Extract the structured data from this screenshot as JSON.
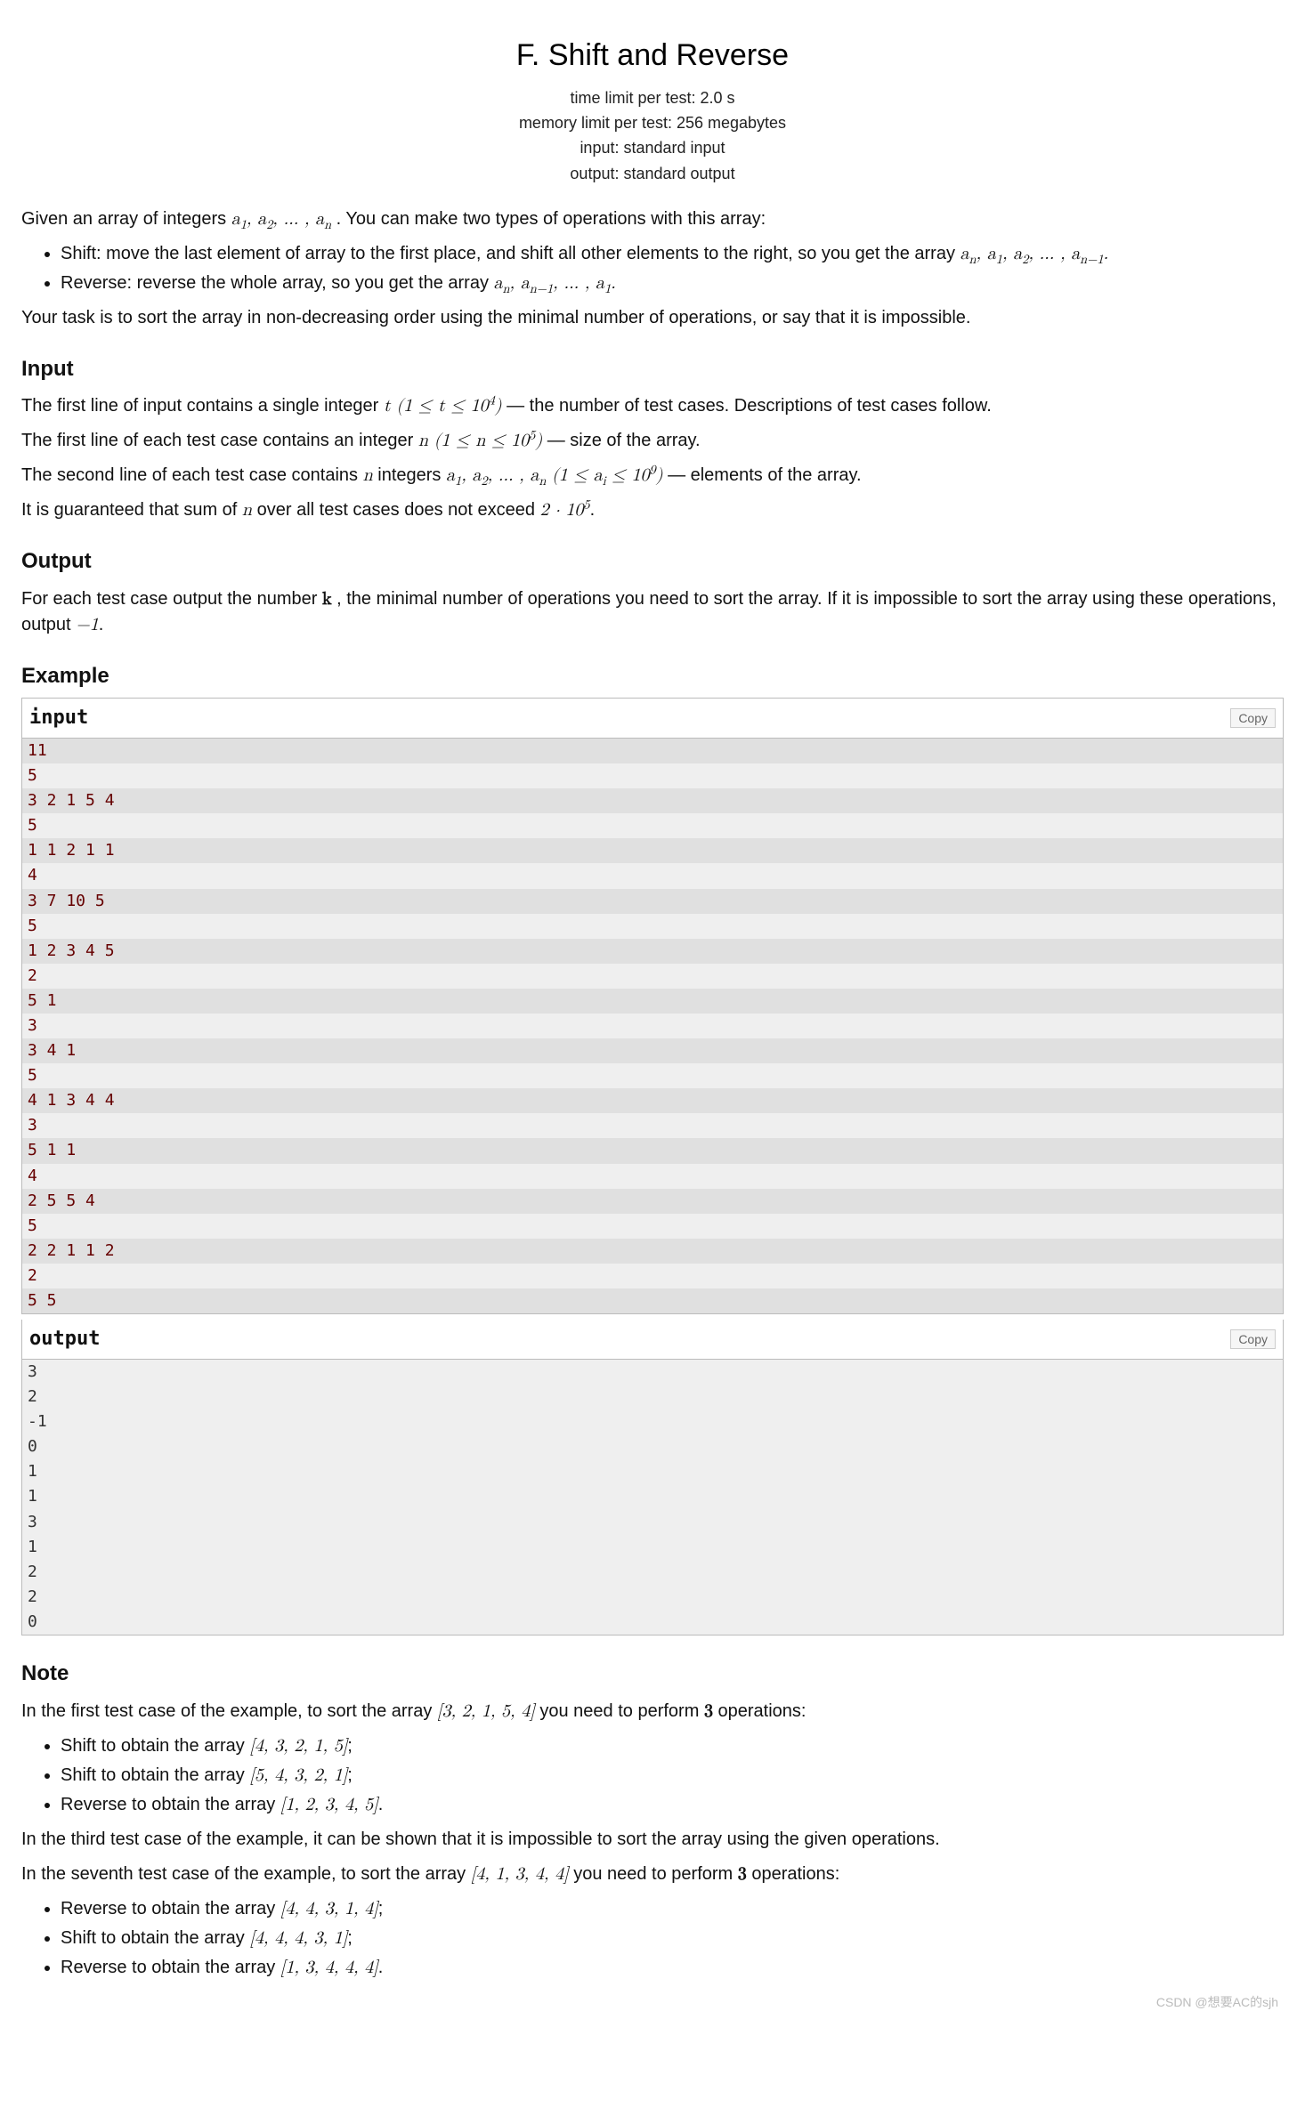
{
  "title": "F. Shift and Reverse",
  "meta": {
    "time": "time limit per test: 2.0 s",
    "memory": "memory limit per test: 256 megabytes",
    "input": "input: standard input",
    "output": "output: standard output"
  },
  "intro": "Given an array of integers a₁, a₂, …, aₙ. You can make two types of operations with this array:",
  "op_shift_pre": "Shift: move the last element of array to the first place, and shift all other elements to the right, so you get the array ",
  "op_shift_math": "aₙ, a₁, a₂, …, aₙ₋₁.",
  "op_reverse_pre": "Reverse: reverse the whole array, so you get the array ",
  "op_reverse_math": "aₙ, aₙ₋₁, …, a₁.",
  "task": "Your task is to sort the array in non-decreasing order using the minimal number of operations, or say that it is impossible.",
  "section_input": "Input",
  "inp_p1_a": "The first line of input contains a single integer ",
  "inp_p1_b": " — the number of test cases. Descriptions of test cases follow.",
  "inp_p2_a": "The first line of each test case contains an integer ",
  "inp_p2_b": " — size of the array.",
  "inp_p3_a": "The second line of each test case contains ",
  "inp_p3_b": " integers ",
  "inp_p3_c": " — elements of the array.",
  "inp_p4_a": "It is guaranteed that sum of ",
  "inp_p4_b": " over all test cases does not exceed ",
  "section_output": "Output",
  "out_p1_a": "For each test case output the number ",
  "out_p1_b": ", the minimal number of operations you need to sort the array. If it is impossible to sort the array using these operations, output ",
  "section_example": "Example",
  "io_input_label": "input",
  "io_output_label": "output",
  "copy_label": "Copy",
  "example_input": [
    "11",
    "5",
    "3 2 1 5 4",
    "5",
    "1 1 2 1 1",
    "4",
    "3 7 10 5",
    "5",
    "1 2 3 4 5",
    "2",
    "5 1",
    "3",
    "3 4 1",
    "5",
    "4 1 3 4 4",
    "3",
    "5 1 1",
    "4",
    "2 5 5 4",
    "5",
    "2 2 1 1 2",
    "2",
    "5 5"
  ],
  "example_output": [
    "3",
    "2",
    "-1",
    "0",
    "1",
    "1",
    "3",
    "1",
    "2",
    "2",
    "0"
  ],
  "section_note": "Note",
  "note_p1_a": "In the first test case of the example, to sort the array ",
  "note_p1_arr": "[3, 2, 1, 5, 4]",
  "note_p1_b": " you need to perform ",
  "note_p1_c": " operations:",
  "note1_li1_a": "Shift to obtain the array ",
  "note1_li1_arr": "[4, 3, 2, 1, 5]",
  "note1_li2_a": "Shift to obtain the array ",
  "note1_li2_arr": "[5, 4, 3, 2, 1]",
  "note1_li3_a": "Reverse to obtain the array ",
  "note1_li3_arr": "[1, 2, 3, 4, 5]",
  "note_p2": "In the third test case of the example, it can be shown that it is impossible to sort the array using the given operations.",
  "note_p3_a": "In the seventh test case of the example, to sort the array ",
  "note_p3_arr": "[4, 1, 3, 4, 4]",
  "note_p3_b": " you need to perform ",
  "note_p3_c": " operations:",
  "note3_li1_a": "Reverse to obtain the array ",
  "note3_li1_arr": "[4, 4, 3, 1, 4]",
  "note3_li2_a": "Shift to obtain the array ",
  "note3_li2_arr": "[4, 4, 4, 3, 1]",
  "note3_li3_a": "Reverse to obtain the array ",
  "note3_li3_arr": "[1, 3, 4, 4, 4]",
  "watermark": "CSDN @想要AC的sjh",
  "colors": {
    "io_text": "#660000",
    "io_bg_light": "#efefef",
    "io_bg_dark": "#e0e0e0",
    "border": "#bbbbbb"
  }
}
